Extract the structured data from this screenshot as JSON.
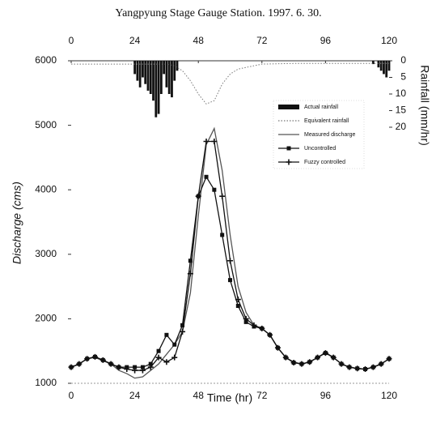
{
  "chart_data": {
    "type": "line",
    "title": "Yangpyung  Stage Gauge Station. 1997. 6. 30.",
    "x_label": "Time (hr)",
    "y_label": "Discharge (cms)",
    "y2_label": "Rainfall (mm/hr)",
    "xlim": [
      0,
      120
    ],
    "xticks": [
      0,
      24,
      48,
      72,
      96,
      120
    ],
    "ylim": [
      1000,
      6000
    ],
    "yticks": [
      1000,
      2000,
      3000,
      4000,
      5000,
      6000
    ],
    "y2lim": [
      0,
      20
    ],
    "y2ticks": [
      0,
      5,
      10,
      15,
      20
    ],
    "y2_inverted": true,
    "series": [
      {
        "name": "Actual rainfall",
        "type": "bar",
        "axis": "y2",
        "color": "#111111",
        "x": [
          24,
          25,
          26,
          27,
          28,
          29,
          30,
          31,
          32,
          33,
          34,
          35,
          36,
          37,
          38,
          39,
          40,
          114,
          116,
          117,
          118,
          119,
          120
        ],
        "values": [
          4,
          6,
          8,
          5,
          7,
          9,
          10,
          12,
          17,
          16,
          10,
          4,
          8,
          10,
          11,
          6,
          3,
          1,
          2,
          3,
          4,
          5,
          3
        ]
      },
      {
        "name": "Equivalent rainfall",
        "type": "line",
        "axis": "y2",
        "color": "#777777",
        "marker": "none",
        "dash": true,
        "x": [
          0,
          6,
          12,
          18,
          24,
          30,
          36,
          39,
          42,
          45,
          48,
          51,
          54,
          57,
          60,
          63,
          66,
          69,
          72,
          84,
          96,
          108,
          120
        ],
        "values": [
          1,
          1,
          1,
          1,
          1,
          1,
          1,
          1.5,
          3,
          6,
          10,
          13,
          12,
          7,
          4,
          2.5,
          2,
          1.5,
          1,
          0.8,
          0.8,
          0.8,
          0.8
        ]
      },
      {
        "name": "Measured discharge",
        "type": "line",
        "color": "#555555",
        "marker": "none",
        "x": [
          0,
          3,
          6,
          9,
          12,
          15,
          18,
          21,
          24,
          27,
          30,
          33,
          36,
          39,
          42,
          45,
          48,
          51,
          54,
          57,
          60,
          63,
          66,
          69,
          72,
          75,
          78,
          81,
          84,
          87,
          90,
          93,
          96,
          99,
          102,
          105,
          108,
          111,
          114,
          117,
          120
        ],
        "values": [
          1250,
          1300,
          1380,
          1400,
          1350,
          1300,
          1200,
          1150,
          1080,
          1100,
          1200,
          1300,
          1450,
          1600,
          1800,
          2400,
          3600,
          4700,
          4950,
          4300,
          3300,
          2500,
          2100,
          1900,
          1850,
          1750,
          1550,
          1400,
          1330,
          1300,
          1330,
          1400,
          1480,
          1400,
          1300,
          1250,
          1230,
          1220,
          1250,
          1300,
          1380
        ]
      },
      {
        "name": "Uncontrolled",
        "type": "line",
        "color": "#111111",
        "marker": "square",
        "x": [
          0,
          3,
          6,
          9,
          12,
          15,
          18,
          21,
          24,
          27,
          30,
          33,
          36,
          39,
          42,
          45,
          48,
          51,
          54,
          57,
          60,
          63,
          66,
          69,
          72,
          75,
          78,
          81,
          84,
          87,
          90,
          93,
          96,
          99,
          102,
          105,
          108,
          111,
          114,
          117,
          120
        ],
        "values": [
          1250,
          1300,
          1380,
          1410,
          1360,
          1300,
          1250,
          1250,
          1250,
          1250,
          1300,
          1500,
          1750,
          1600,
          1900,
          2900,
          3900,
          4200,
          4000,
          3300,
          2600,
          2200,
          1950,
          1880,
          1850,
          1750,
          1550,
          1400,
          1320,
          1300,
          1330,
          1400,
          1470,
          1400,
          1300,
          1250,
          1230,
          1220,
          1250,
          1300,
          1380
        ]
      },
      {
        "name": "Fuzzy controlled",
        "type": "line",
        "color": "#111111",
        "marker": "cross",
        "x": [
          0,
          3,
          6,
          9,
          12,
          15,
          18,
          21,
          24,
          27,
          30,
          33,
          36,
          39,
          42,
          45,
          48,
          51,
          54,
          57,
          60,
          63,
          66,
          69,
          72,
          75,
          78,
          81,
          84,
          87,
          90,
          93,
          96,
          99,
          102,
          105,
          108,
          111,
          114,
          117,
          120
        ],
        "values": [
          1250,
          1300,
          1380,
          1410,
          1360,
          1300,
          1250,
          1220,
          1200,
          1200,
          1250,
          1400,
          1330,
          1400,
          1800,
          2700,
          3900,
          4750,
          4750,
          3900,
          2900,
          2300,
          2000,
          1900,
          1850,
          1750,
          1550,
          1400,
          1320,
          1300,
          1330,
          1400,
          1470,
          1400,
          1300,
          1250,
          1230,
          1220,
          1250,
          1300,
          1380
        ]
      }
    ]
  }
}
